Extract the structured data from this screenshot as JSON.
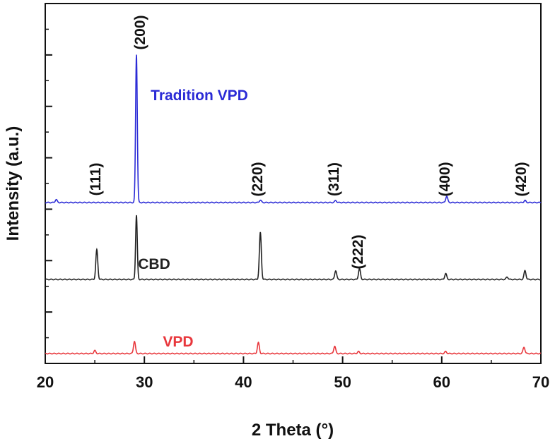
{
  "chart_data": {
    "type": "line",
    "xlabel": "2 Theta (°)",
    "ylabel": "Intensity (a.u.)",
    "xlim": [
      20,
      70
    ],
    "xticks": [
      "20",
      "30",
      "40",
      "50",
      "60",
      "70"
    ],
    "y_tick_labels_shown": false,
    "grid": false,
    "series": [
      {
        "name": "Tradition VPD",
        "color": "#2b2bd6",
        "baseline": 0.0,
        "peaks": [
          {
            "x": 21.1,
            "h": 0.006
          },
          {
            "x": 29.2,
            "h": 0.3
          },
          {
            "x": 41.7,
            "h": 0.005
          },
          {
            "x": 49.3,
            "h": 0.004
          },
          {
            "x": 60.5,
            "h": 0.013
          },
          {
            "x": 68.4,
            "h": 0.004
          }
        ]
      },
      {
        "name": "CBD",
        "color": "#222222",
        "baseline": 0.0,
        "peaks": [
          {
            "x": 25.2,
            "h": 0.06
          },
          {
            "x": 29.2,
            "h": 0.13
          },
          {
            "x": 41.7,
            "h": 0.095
          },
          {
            "x": 49.3,
            "h": 0.018
          },
          {
            "x": 51.7,
            "h": 0.022
          },
          {
            "x": 60.4,
            "h": 0.012
          },
          {
            "x": 66.6,
            "h": 0.005
          },
          {
            "x": 68.4,
            "h": 0.018
          }
        ]
      },
      {
        "name": "VPD",
        "color": "#e8373c",
        "baseline": 0.0,
        "peaks": [
          {
            "x": 25.0,
            "h": 0.006
          },
          {
            "x": 29.0,
            "h": 0.025
          },
          {
            "x": 41.5,
            "h": 0.022
          },
          {
            "x": 49.2,
            "h": 0.015
          },
          {
            "x": 51.6,
            "h": 0.004
          },
          {
            "x": 60.4,
            "h": 0.004
          },
          {
            "x": 68.3,
            "h": 0.013
          }
        ]
      }
    ],
    "annotations": [
      {
        "text": "(111)",
        "x": 25.2
      },
      {
        "text": "(200)",
        "x": 29.2
      },
      {
        "text": "(220)",
        "x": 41.7
      },
      {
        "text": "(311)",
        "x": 49.3
      },
      {
        "text": "(400)",
        "x": 60.5
      },
      {
        "text": "(420)",
        "x": 68.4
      },
      {
        "text": "(222)",
        "x": 51.7
      }
    ]
  }
}
